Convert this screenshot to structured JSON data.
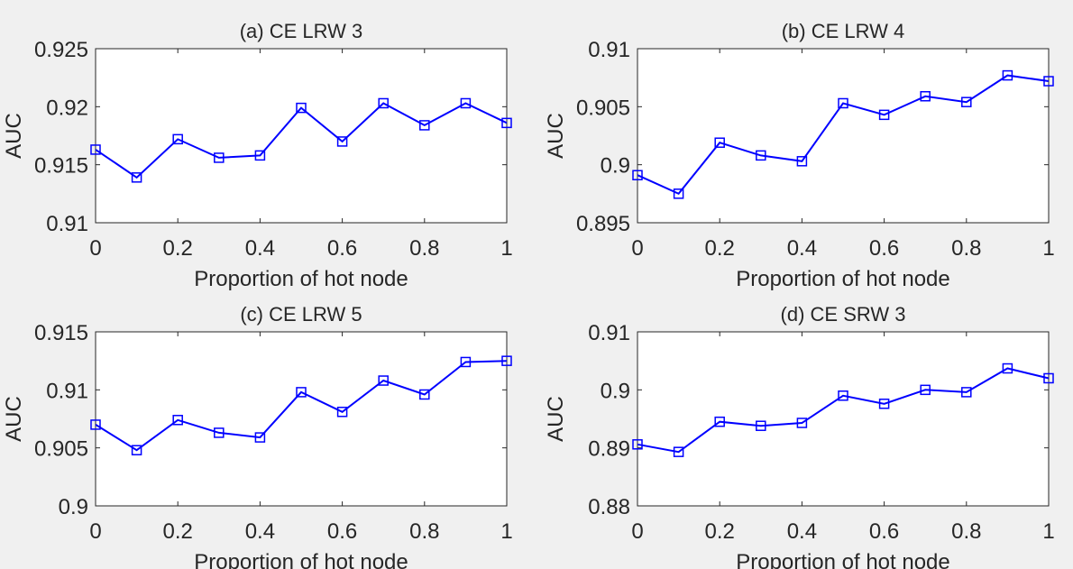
{
  "chart_data": [
    {
      "type": "line",
      "title": "(a) CE LRW 3",
      "xlabel": "Proportion of hot node",
      "ylabel": "AUC",
      "xlim": [
        0,
        1
      ],
      "ylim": [
        0.91,
        0.925
      ],
      "xticks": [
        0,
        0.2,
        0.4,
        0.6,
        0.8,
        1
      ],
      "xtick_labels": [
        "0",
        "0.2",
        "0.4",
        "0.6",
        "0.8",
        "1"
      ],
      "yticks": [
        0.91,
        0.915,
        0.92,
        0.925
      ],
      "ytick_labels": [
        "0.91",
        "0.915",
        "0.92",
        "0.925"
      ],
      "grid": false,
      "marker": "square",
      "color": "#0000ff",
      "x": [
        0,
        0.1,
        0.2,
        0.3,
        0.4,
        0.5,
        0.6,
        0.7,
        0.8,
        0.9,
        1
      ],
      "y": [
        0.9163,
        0.9139,
        0.9172,
        0.9156,
        0.9158,
        0.9199,
        0.917,
        0.9203,
        0.9184,
        0.9203,
        0.9186
      ]
    },
    {
      "type": "line",
      "title": "(b) CE LRW 4",
      "xlabel": "Proportion of hot node",
      "ylabel": "AUC",
      "xlim": [
        0,
        1
      ],
      "ylim": [
        0.895,
        0.91
      ],
      "xticks": [
        0,
        0.2,
        0.4,
        0.6,
        0.8,
        1
      ],
      "xtick_labels": [
        "0",
        "0.2",
        "0.4",
        "0.6",
        "0.8",
        "1"
      ],
      "yticks": [
        0.895,
        0.9,
        0.905,
        0.91
      ],
      "ytick_labels": [
        "0.895",
        "0.9",
        "0.905",
        "0.91"
      ],
      "grid": false,
      "marker": "square",
      "color": "#0000ff",
      "x": [
        0,
        0.1,
        0.2,
        0.3,
        0.4,
        0.5,
        0.6,
        0.7,
        0.8,
        0.9,
        1
      ],
      "y": [
        0.8991,
        0.8975,
        0.9019,
        0.9008,
        0.9003,
        0.9053,
        0.9043,
        0.9059,
        0.9054,
        0.9077,
        0.9072
      ]
    },
    {
      "type": "line",
      "title": "(c) CE LRW 5",
      "xlabel": "Proportion of hot node",
      "ylabel": "AUC",
      "xlim": [
        0,
        1
      ],
      "ylim": [
        0.9,
        0.915
      ],
      "xticks": [
        0,
        0.2,
        0.4,
        0.6,
        0.8,
        1
      ],
      "xtick_labels": [
        "0",
        "0.2",
        "0.4",
        "0.6",
        "0.8",
        "1"
      ],
      "yticks": [
        0.9,
        0.905,
        0.91,
        0.915
      ],
      "ytick_labels": [
        "0.9",
        "0.905",
        "0.91",
        "0.915"
      ],
      "grid": false,
      "marker": "square",
      "color": "#0000ff",
      "x": [
        0,
        0.1,
        0.2,
        0.3,
        0.4,
        0.5,
        0.6,
        0.7,
        0.8,
        0.9,
        1
      ],
      "y": [
        0.907,
        0.9048,
        0.9074,
        0.9063,
        0.9059,
        0.9098,
        0.9081,
        0.9108,
        0.9096,
        0.9124,
        0.9125
      ]
    },
    {
      "type": "line",
      "title": "(d) CE SRW 3",
      "xlabel": "Proportion of hot node",
      "ylabel": "AUC",
      "xlim": [
        0,
        1
      ],
      "ylim": [
        0.88,
        0.91
      ],
      "xticks": [
        0,
        0.2,
        0.4,
        0.6,
        0.8,
        1
      ],
      "xtick_labels": [
        "0",
        "0.2",
        "0.4",
        "0.6",
        "0.8",
        "1"
      ],
      "yticks": [
        0.88,
        0.89,
        0.9,
        0.91
      ],
      "ytick_labels": [
        "0.88",
        "0.89",
        "0.9",
        "0.91"
      ],
      "grid": false,
      "marker": "square",
      "color": "#0000ff",
      "x": [
        0,
        0.1,
        0.2,
        0.3,
        0.4,
        0.5,
        0.6,
        0.7,
        0.8,
        0.9,
        1
      ],
      "y": [
        0.8906,
        0.8893,
        0.8945,
        0.8938,
        0.8943,
        0.899,
        0.8976,
        0.9,
        0.8996,
        0.9037,
        0.902
      ]
    }
  ]
}
